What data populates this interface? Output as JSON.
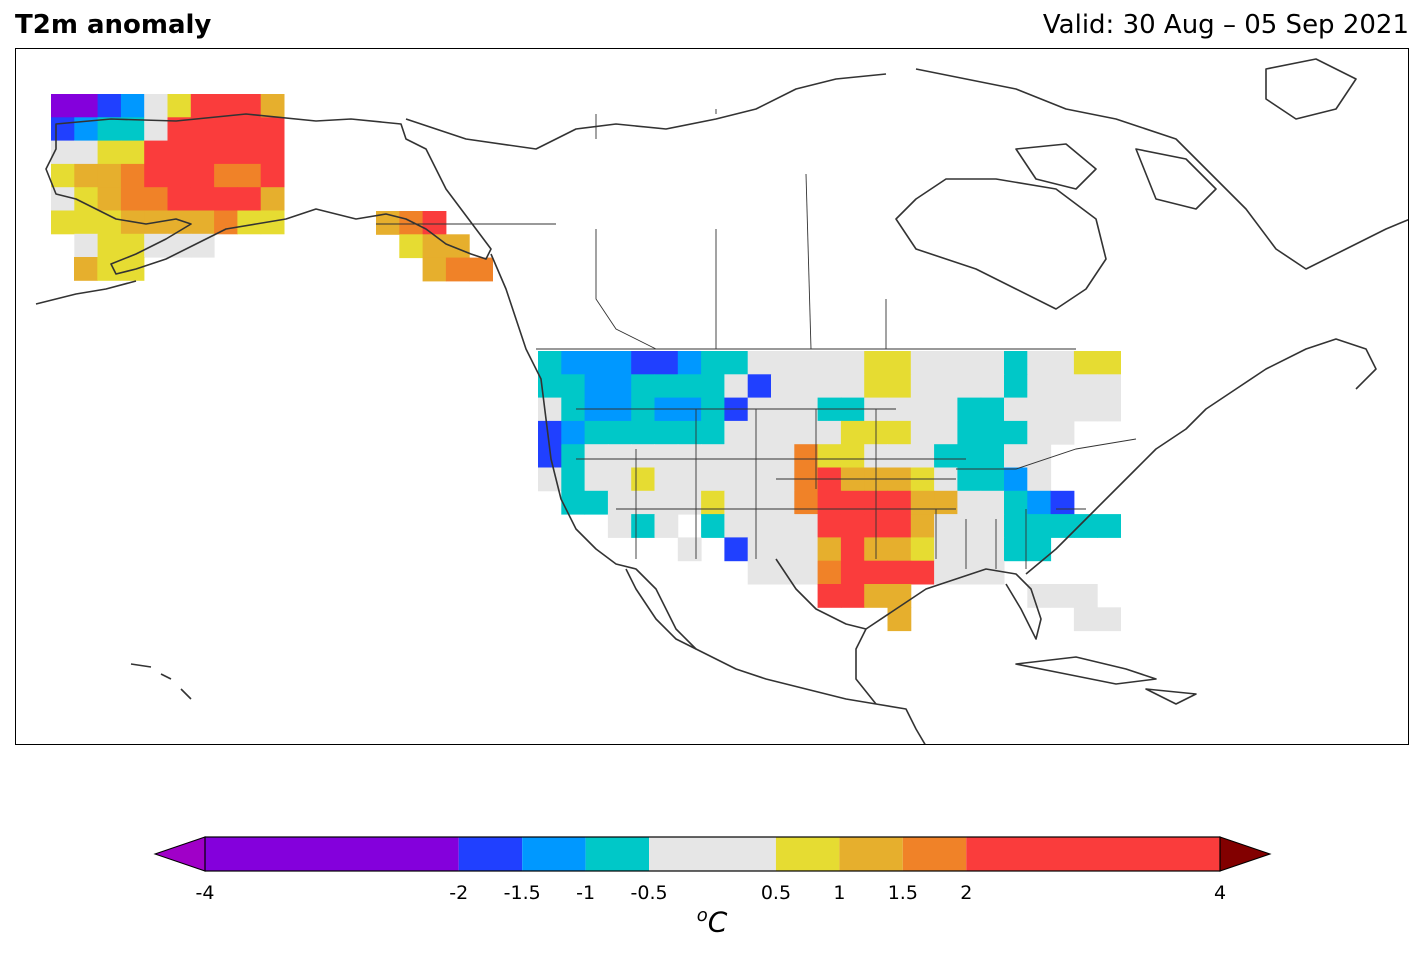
{
  "header": {
    "title": "T2m anomaly",
    "valid": "Valid: 30 Aug – 05 Sep 2021"
  },
  "colorbar": {
    "unit_main": "C",
    "unit_sup": "o",
    "ticks": [
      "-4",
      "-2",
      "-1.5",
      "-1",
      "-0.5",
      "0.5",
      "1",
      "1.5",
      "2",
      "4"
    ],
    "bins": [
      {
        "from": -4,
        "to": -2,
        "color": "#8400dc"
      },
      {
        "from": -2,
        "to": -1.5,
        "color": "#2040ff"
      },
      {
        "from": -1.5,
        "to": -1,
        "color": "#0098ff"
      },
      {
        "from": -1,
        "to": -0.5,
        "color": "#00c8c8"
      },
      {
        "from": -0.5,
        "to": 0.5,
        "color": "#e6e6e6"
      },
      {
        "from": 0.5,
        "to": 1,
        "color": "#e6dc32"
      },
      {
        "from": 1,
        "to": 1.5,
        "color": "#e6af2d"
      },
      {
        "from": 1.5,
        "to": 2,
        "color": "#f08228"
      },
      {
        "from": 2,
        "to": 4,
        "color": "#fa3c3c"
      }
    ],
    "under_color": "#a000c8",
    "over_color": "#820000"
  }
}
